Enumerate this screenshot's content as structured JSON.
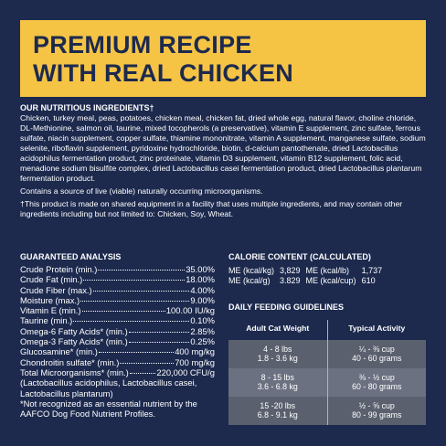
{
  "banner": {
    "title_lines": [
      "PREMIUM RECIPE",
      "WITH REAL CHICKEN"
    ]
  },
  "ingredients": {
    "heading": "OUR NUTRITIOUS INGREDIENTS†",
    "text": "Chicken, turkey meal, peas, potatoes, chicken meal, chicken fat, dried whole egg, natural flavor, choline chloride, DL-Methionine, salmon oil, taurine, mixed tocopherols (a preservative), vitamin E supplement, zinc sulfate, ferrous sulfate, niacin supplement, copper sulfate, thiamine mononitrate, vitamin A supplement, manganese sulfate, sodium selenite, riboflavin supplement, pyridoxine hydrochloride, biotin, d-calcium pantothenate, dried Lactobacillus acidophilus fermentation product, zinc proteinate, vitamin D3 supplement, vitamin B12 supplement, folic acid, menadione sodium bisulfite complex, dried Lactobacillus casei fermentation product, dried Lactobacillus plantarum fermentation product.",
    "notes": [
      "Contains a source of live (viable) naturally occurring microorganisms.",
      "†This product is made on shared equipment in a facility that uses multiple ingredients, and may contain other ingredients including but not limited to: Chicken, Soy, Wheat."
    ]
  },
  "analysis": {
    "heading": "GUARANTEED ANALYSIS",
    "rows": [
      [
        "Crude Protein (min.)",
        "35.00%"
      ],
      [
        "Crude Fat (min.)",
        "18.00%"
      ],
      [
        "Crude Fiber (max.)",
        "4.00%"
      ],
      [
        "Moisture (max.)",
        "9.00%"
      ],
      [
        "Vitamin E (min.)",
        "100.00 IU/kg"
      ],
      [
        "Taurine (min.)",
        "0.10%"
      ],
      [
        "Omega-6 Fatty Acids* (min.)",
        "2.85%"
      ],
      [
        "Omega-3 Fatty Acids* (min.)",
        "0.25%"
      ],
      [
        "Glucosamine* (min.)",
        "400 mg/kg"
      ],
      [
        "Chondroitin sulfate* (min.)",
        "700 mg/kg"
      ],
      [
        "Total Microorganisms* (min.)",
        "220,000 CFU/g"
      ]
    ],
    "extra": "(Lactobacillus acidophilus, Lactobacillus casei, Lactobacillus plantarum)",
    "footnote": "*Not recognized as an essential nutrient by the AAFCO Dog Food Nutrient Profiles."
  },
  "calorie": {
    "heading": "CALORIE CONTENT (CALCULATED)",
    "rows": [
      [
        "ME (kcal/kg)",
        "3,829",
        "ME (kcal/lb)",
        "1,737"
      ],
      [
        "ME (kcal/g)",
        "3.829",
        "ME (kcal/cup)",
        "610"
      ]
    ]
  },
  "feeding": {
    "heading": "DAILY FEEDING GUIDELINES",
    "columns": [
      "Adult Cat Weight",
      "Typical Activity"
    ],
    "rows": [
      [
        [
          "4 - 8 lbs",
          "1.8 - 3.6 kg"
        ],
        [
          "¼ - ⅜ cup",
          "40 - 60 grams"
        ]
      ],
      [
        [
          "8 - 15 lbs",
          "3.6 - 6.8 kg"
        ],
        [
          "⅜ - ½ cup",
          "60 - 80 grams"
        ]
      ],
      [
        [
          "15 -20 lbs",
          "6.8 - 9.1 kg"
        ],
        [
          "½ - ⅝ cup",
          "80 - 99 grams"
        ]
      ]
    ]
  }
}
